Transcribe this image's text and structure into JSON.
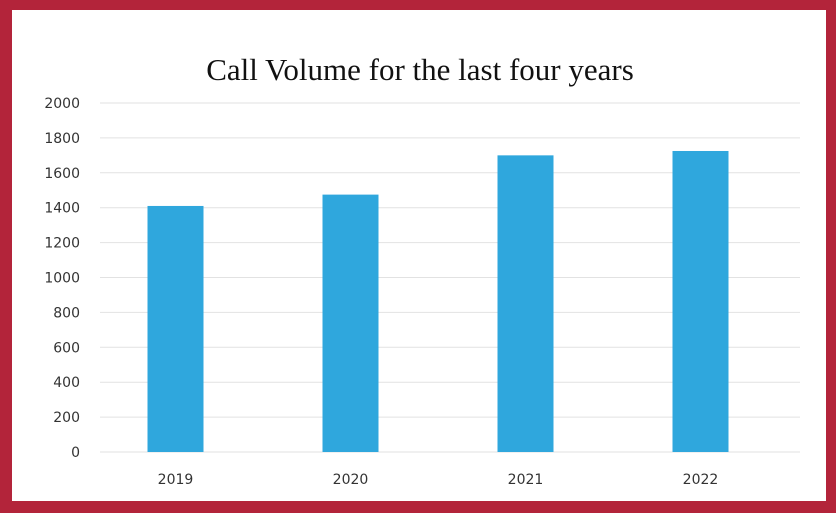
{
  "chart_data": {
    "type": "bar",
    "title": "Call Volume for the last four years",
    "xlabel": "",
    "ylabel": "",
    "categories": [
      "2019",
      "2020",
      "2021",
      "2022"
    ],
    "values": [
      1410,
      1475,
      1700,
      1725
    ],
    "ylim": [
      0,
      2000
    ],
    "yticks": [
      "0",
      "200",
      "400",
      "600",
      "800",
      "1000",
      "1200",
      "1400",
      "1600",
      "1800",
      "2000"
    ],
    "grid": true,
    "legend": "none",
    "bar_color": "#2fa7dd",
    "border_color": "#b3243a"
  }
}
